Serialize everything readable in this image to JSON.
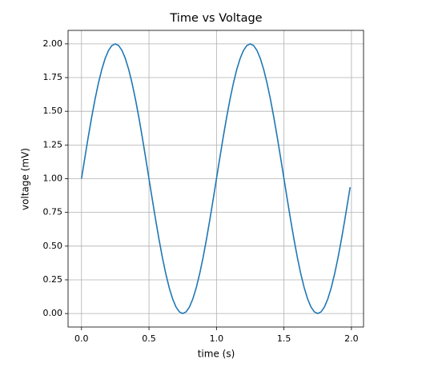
{
  "chart_data": {
    "type": "line",
    "title": "Time vs Voltage",
    "x_label": "time (s)",
    "y_label": "voltage (mV)",
    "x": [
      0,
      0.025,
      0.05,
      0.075,
      0.1,
      0.125,
      0.15,
      0.175,
      0.2,
      0.225,
      0.25,
      0.275,
      0.3,
      0.325,
      0.35,
      0.375,
      0.4,
      0.425,
      0.45,
      0.475,
      0.5,
      0.525,
      0.55,
      0.575,
      0.6,
      0.625,
      0.65,
      0.675,
      0.7,
      0.725,
      0.75,
      0.775,
      0.8,
      0.825,
      0.85,
      0.875,
      0.9,
      0.925,
      0.95,
      0.975,
      1,
      1.025,
      1.05,
      1.075,
      1.1,
      1.125,
      1.15,
      1.175,
      1.2,
      1.225,
      1.25,
      1.275,
      1.3,
      1.325,
      1.35,
      1.375,
      1.4,
      1.425,
      1.45,
      1.475,
      1.5,
      1.525,
      1.55,
      1.575,
      1.6,
      1.625,
      1.65,
      1.675,
      1.7,
      1.725,
      1.75,
      1.775,
      1.8,
      1.825,
      1.85,
      1.875,
      1.9,
      1.925,
      1.95,
      1.975,
      1.99
    ],
    "values": [
      1,
      1.1564,
      1.309,
      1.454,
      1.5878,
      1.7071,
      1.809,
      1.891,
      1.9511,
      1.9877,
      2,
      1.9877,
      1.9511,
      1.891,
      1.809,
      1.7071,
      1.5878,
      1.454,
      1.309,
      1.1564,
      1,
      0.8436,
      0.691,
      0.546,
      0.4122,
      0.2929,
      0.191,
      0.109,
      0.0489,
      0.0123,
      0,
      0.0123,
      0.0489,
      0.109,
      0.191,
      0.2929,
      0.4122,
      0.546,
      0.691,
      0.8436,
      1,
      1.1564,
      1.309,
      1.454,
      1.5878,
      1.7071,
      1.809,
      1.891,
      1.9511,
      1.9877,
      2,
      1.9877,
      1.9511,
      1.891,
      1.809,
      1.7071,
      1.5878,
      1.454,
      1.309,
      1.1564,
      1,
      0.8436,
      0.691,
      0.546,
      0.4122,
      0.2929,
      0.191,
      0.109,
      0.0489,
      0.0123,
      0,
      0.0123,
      0.0489,
      0.109,
      0.191,
      0.2929,
      0.4122,
      0.546,
      0.691,
      0.8436,
      0.9372
    ],
    "color": "#1f77b4",
    "xlim": [
      -0.0995,
      2.0895
    ],
    "xticks": [
      {
        "value": 0,
        "label": "0.0"
      },
      {
        "value": 0.5,
        "label": "0.5"
      },
      {
        "value": 1,
        "label": "1.0"
      },
      {
        "value": 1.5,
        "label": "1.5"
      },
      {
        "value": 2,
        "label": "2.0"
      }
    ],
    "ylim": [
      -0.1,
      2.1
    ],
    "yticks": [
      {
        "value": 0,
        "label": "0.00"
      },
      {
        "value": 0.25,
        "label": "0.25"
      },
      {
        "value": 0.5,
        "label": "0.50"
      },
      {
        "value": 0.75,
        "label": "0.75"
      },
      {
        "value": 1,
        "label": "1.00"
      },
      {
        "value": 1.25,
        "label": "1.25"
      },
      {
        "value": 1.5,
        "label": "1.50"
      },
      {
        "value": 1.75,
        "label": "1.75"
      },
      {
        "value": 2,
        "label": "2.00"
      }
    ],
    "grid": true
  }
}
